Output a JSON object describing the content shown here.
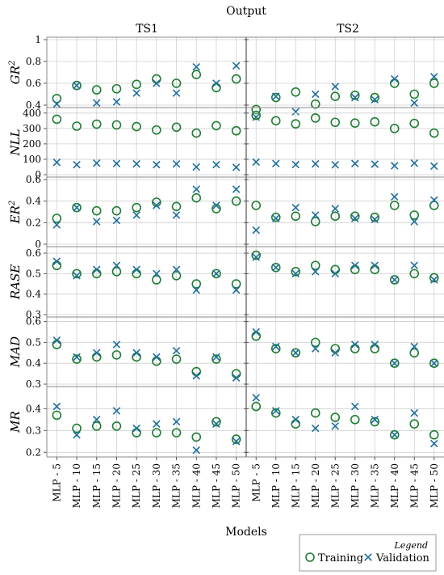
{
  "figure": {
    "title": "Output",
    "xlabel": "Models"
  },
  "legend": {
    "title": "Legend",
    "placement": "bottom-right",
    "entries": [
      {
        "name": "Training",
        "marker": "circle",
        "color": "#1e7d32"
      },
      {
        "name": "Validation",
        "marker": "x",
        "color": "#1f6e9c"
      }
    ]
  },
  "colors": {
    "training": "#1e7d32",
    "validation": "#1f6e9c",
    "grid": "#cfcfcf",
    "panel_border": "#888888"
  },
  "chart_data": {
    "type": "scatter",
    "grid": true,
    "columns": [
      "TS1",
      "TS2"
    ],
    "categories": [
      "MLP - 5",
      "MLP - 10",
      "MLP - 15",
      "MLP - 20",
      "MLP - 25",
      "MLP - 30",
      "MLP - 35",
      "MLP - 40",
      "MLP - 45",
      "MLP - 50"
    ],
    "series_names": [
      "Training",
      "Validation"
    ],
    "rows": [
      {
        "metric": "GR²",
        "metric_base": "GR",
        "metric_sup": "2",
        "ylim": [
          0.4,
          1
        ],
        "ticks": [
          0.4,
          0.6,
          0.8,
          1
        ],
        "tick_labels": [
          "0.4",
          "0.6",
          "0.8",
          "1"
        ],
        "data": {
          "TS1": {
            "Training": [
              0.46,
              0.58,
              0.54,
              0.55,
              0.59,
              0.64,
              0.6,
              0.68,
              0.56,
              0.64
            ],
            "Validation": [
              0.41,
              0.58,
              0.42,
              0.43,
              0.51,
              0.6,
              0.51,
              0.75,
              0.6,
              0.76
            ]
          },
          "TS2": {
            "Training": [
              0.36,
              0.47,
              0.52,
              0.41,
              0.48,
              0.49,
              0.47,
              0.6,
              0.5,
              0.6
            ],
            "Validation": [
              0.29,
              0.48,
              0.34,
              0.5,
              0.57,
              0.47,
              0.45,
              0.64,
              0.42,
              0.66
            ]
          }
        }
      },
      {
        "metric": "NLL",
        "metric_base": "NLL",
        "metric_sup": "",
        "ylim": [
          0,
          420
        ],
        "ticks": [
          0,
          100,
          200,
          300,
          400
        ],
        "tick_labels": [
          "0",
          "100",
          "200",
          "300",
          "400"
        ],
        "data": {
          "TS1": {
            "Training": [
              360,
              315,
              328,
              323,
              312,
              290,
              308,
              270,
              318,
              285
            ],
            "Validation": [
              80,
              65,
              75,
              72,
              70,
              65,
              70,
              50,
              65,
              48
            ]
          },
          "TS2": {
            "Training": [
              385,
              350,
              330,
              368,
              340,
              335,
              343,
              300,
              333,
              270
            ],
            "Validation": [
              82,
              72,
              66,
              70,
              64,
              72,
              68,
              58,
              75,
              56
            ]
          }
        }
      },
      {
        "metric": "ER²",
        "metric_base": "ER",
        "metric_sup": "2",
        "ylim": [
          0,
          0.6
        ],
        "ticks": [
          0,
          0.2,
          0.4,
          0.6
        ],
        "tick_labels": [
          "0",
          "0.2",
          "0.4",
          "0.6"
        ],
        "data": {
          "TS1": {
            "Training": [
              0.24,
              0.34,
              0.31,
              0.31,
              0.34,
              0.39,
              0.35,
              0.43,
              0.33,
              0.4
            ],
            "Validation": [
              0.18,
              0.34,
              0.21,
              0.22,
              0.27,
              0.36,
              0.27,
              0.51,
              0.36,
              0.51
            ]
          },
          "TS2": {
            "Training": [
              0.36,
              0.25,
              0.26,
              0.21,
              0.26,
              0.26,
              0.25,
              0.36,
              0.27,
              0.36
            ],
            "Validation": [
              0.13,
              0.24,
              0.34,
              0.27,
              0.33,
              0.24,
              0.23,
              0.44,
              0.21,
              0.41
            ]
          }
        }
      },
      {
        "metric": "RASE",
        "metric_base": "RASE",
        "metric_sup": "",
        "ylim": [
          0.3,
          0.62
        ],
        "ticks": [
          0.3,
          0.4,
          0.5,
          0.6
        ],
        "tick_labels": [
          "0.3",
          "0.4",
          "0.5",
          "0.6"
        ],
        "data": {
          "TS1": {
            "Training": [
              0.54,
              0.5,
              0.5,
              0.51,
              0.5,
              0.47,
              0.49,
              0.45,
              0.5,
              0.45
            ],
            "Validation": [
              0.56,
              0.49,
              0.52,
              0.54,
              0.52,
              0.5,
              0.52,
              0.42,
              0.5,
              0.42
            ]
          },
          "TS2": {
            "Training": [
              0.59,
              0.53,
              0.51,
              0.54,
              0.52,
              0.52,
              0.52,
              0.47,
              0.5,
              0.48
            ],
            "Validation": [
              0.58,
              0.53,
              0.5,
              0.51,
              0.5,
              0.54,
              0.54,
              0.47,
              0.54,
              0.47
            ]
          }
        }
      },
      {
        "metric": "MAD",
        "metric_base": "MAD",
        "metric_sup": "",
        "ylim": [
          0.3,
          0.61
        ],
        "ticks": [
          0.3,
          0.4,
          0.5,
          0.6
        ],
        "tick_labels": [
          "0.3",
          "0.4",
          "0.5",
          "0.6"
        ],
        "data": {
          "TS1": {
            "Training": [
              0.49,
              0.42,
              0.43,
              0.44,
              0.43,
              0.41,
              0.42,
              0.36,
              0.42,
              0.35
            ],
            "Validation": [
              0.51,
              0.43,
              0.45,
              0.49,
              0.45,
              0.43,
              0.46,
              0.34,
              0.43,
              0.33
            ]
          },
          "TS2": {
            "Training": [
              0.53,
              0.47,
              0.45,
              0.5,
              0.47,
              0.47,
              0.47,
              0.4,
              0.45,
              0.4
            ],
            "Validation": [
              0.55,
              0.48,
              0.45,
              0.47,
              0.45,
              0.49,
              0.49,
              0.4,
              0.48,
              0.4
            ]
          }
        }
      },
      {
        "metric": "MR",
        "metric_base": "MR",
        "metric_sup": "",
        "ylim": [
          0.19,
          0.49
        ],
        "ticks": [
          0.2,
          0.3,
          0.4
        ],
        "tick_labels": [
          "0.2",
          "0.3",
          "0.4"
        ],
        "data": {
          "TS1": {
            "Training": [
              0.37,
              0.31,
              0.32,
              0.32,
              0.29,
              0.29,
              0.29,
              0.27,
              0.34,
              0.26
            ],
            "Validation": [
              0.41,
              0.28,
              0.35,
              0.39,
              0.31,
              0.33,
              0.34,
              0.21,
              0.33,
              0.25
            ]
          },
          "TS2": {
            "Training": [
              0.41,
              0.38,
              0.33,
              0.38,
              0.36,
              0.35,
              0.34,
              0.28,
              0.33,
              0.28
            ],
            "Validation": [
              0.45,
              0.39,
              0.35,
              0.31,
              0.32,
              0.41,
              0.35,
              0.28,
              0.38,
              0.24
            ]
          }
        }
      }
    ]
  }
}
